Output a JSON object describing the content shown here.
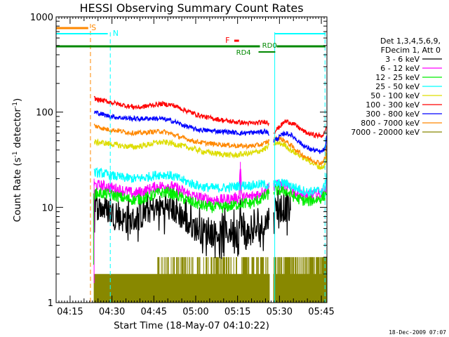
{
  "chart_data": {
    "type": "line",
    "title": "HESSI Observing Summary Count Rates",
    "xlabel": "Start Time (18-May-07 04:10:22)",
    "ylabel_main": "Count Rate (s",
    "ylabel_sup1": "-1",
    "ylabel_mid": " detector",
    "ylabel_sup2": "-1",
    "ylabel_end": ")",
    "yscale": "log",
    "ylim": [
      1,
      1000
    ],
    "xlim_minutes": [
      0,
      97
    ],
    "x_ticks": [
      {
        "m": 5,
        "label": "04:15"
      },
      {
        "m": 20,
        "label": "04:30"
      },
      {
        "m": 35,
        "label": "04:45"
      },
      {
        "m": 50,
        "label": "05:00"
      },
      {
        "m": 65,
        "label": "05:15"
      },
      {
        "m": 80,
        "label": "05:30"
      },
      {
        "m": 95,
        "label": "05:45"
      }
    ],
    "y_ticks": [
      {
        "v": 1,
        "label": "1"
      },
      {
        "v": 10,
        "label": "10"
      },
      {
        "v": 100,
        "label": "100"
      },
      {
        "v": 1000,
        "label": "1000"
      }
    ],
    "legend_header": [
      "Det 1,3,4,5,6,9,",
      "FDecim 1, Att 0"
    ],
    "legend_position": "right",
    "data_start_minute": 13.6,
    "data_end_minute": 97,
    "data_gap_minutes": [
      76.4,
      77.9
    ],
    "series": [
      {
        "name": "3 - 6 keV",
        "color": "#000000",
        "noise": 0.14,
        "points": [
          [
            13.6,
            10
          ],
          [
            15,
            10
          ],
          [
            18,
            9.5
          ],
          [
            22,
            8
          ],
          [
            26,
            7
          ],
          [
            30,
            8
          ],
          [
            34,
            9.5
          ],
          [
            38,
            10
          ],
          [
            42,
            9.5
          ],
          [
            46,
            7.5
          ],
          [
            50,
            6
          ],
          [
            55,
            5.5
          ],
          [
            60,
            5.2
          ],
          [
            64,
            5.8
          ],
          [
            65.5,
            5.8
          ],
          [
            66,
            8
          ],
          [
            67,
            5.2
          ],
          [
            70,
            5.5
          ],
          [
            73,
            6
          ],
          [
            75,
            7
          ],
          [
            76.4,
            8
          ],
          [
            78,
            10
          ],
          [
            82,
            9.5
          ],
          [
            84,
            9.5
          ]
        ]
      },
      {
        "name": "6 - 12 keV",
        "color": "#ff00ff",
        "noise": 0.06,
        "points": [
          [
            13.6,
            17
          ],
          [
            16,
            17
          ],
          [
            20,
            16
          ],
          [
            24,
            15
          ],
          [
            28,
            14
          ],
          [
            32,
            15
          ],
          [
            36,
            16.5
          ],
          [
            40,
            17
          ],
          [
            44,
            15.5
          ],
          [
            48,
            13.5
          ],
          [
            52,
            12.5
          ],
          [
            56,
            12
          ],
          [
            60,
            12
          ],
          [
            64,
            12.5
          ],
          [
            65.5,
            12.5
          ],
          [
            66,
            30
          ],
          [
            66.5,
            12.5
          ],
          [
            70,
            13
          ],
          [
            74,
            14.5
          ],
          [
            76.4,
            16.5
          ],
          [
            78,
            17
          ],
          [
            82,
            17
          ],
          [
            86,
            14
          ],
          [
            90,
            13
          ],
          [
            95,
            14
          ],
          [
            96.5,
            15
          ],
          [
            97,
            20
          ]
        ]
      },
      {
        "name": "12 - 25 keV",
        "color": "#00ee00",
        "noise": 0.06,
        "points": [
          [
            13.6,
            14
          ],
          [
            16,
            14
          ],
          [
            20,
            13.5
          ],
          [
            24,
            12.5
          ],
          [
            28,
            12
          ],
          [
            32,
            12.5
          ],
          [
            36,
            14
          ],
          [
            40,
            14.5
          ],
          [
            44,
            13
          ],
          [
            48,
            11.5
          ],
          [
            52,
            10.5
          ],
          [
            56,
            10
          ],
          [
            60,
            10
          ],
          [
            64,
            10.5
          ],
          [
            66,
            11
          ],
          [
            70,
            11
          ],
          [
            74,
            12.5
          ],
          [
            76.4,
            14
          ],
          [
            78,
            15
          ],
          [
            82,
            15
          ],
          [
            86,
            12.5
          ],
          [
            90,
            11.5
          ],
          [
            95,
            12.5
          ],
          [
            96.5,
            13.5
          ],
          [
            97,
            16
          ]
        ]
      },
      {
        "name": "25 - 50 keV",
        "color": "#00ffff",
        "noise": 0.05,
        "points": [
          [
            13.6,
            23
          ],
          [
            16,
            23
          ],
          [
            20,
            21.5
          ],
          [
            24,
            20.5
          ],
          [
            28,
            20
          ],
          [
            32,
            20.5
          ],
          [
            36,
            22
          ],
          [
            40,
            22
          ],
          [
            44,
            20
          ],
          [
            48,
            18
          ],
          [
            52,
            16.5
          ],
          [
            56,
            16
          ],
          [
            60,
            16
          ],
          [
            64,
            16.5
          ],
          [
            66,
            17
          ],
          [
            70,
            17
          ],
          [
            74,
            17.5
          ],
          [
            76.4,
            17
          ],
          [
            78,
            17.5
          ],
          [
            82,
            18
          ],
          [
            86,
            16
          ],
          [
            90,
            14.5
          ],
          [
            95,
            15
          ],
          [
            96.5,
            17
          ],
          [
            97,
            25
          ]
        ]
      },
      {
        "name": "50 - 100 keV",
        "color": "#dddd00",
        "noise": 0.03,
        "points": [
          [
            13.6,
            48
          ],
          [
            16,
            48
          ],
          [
            20,
            46
          ],
          [
            24,
            44
          ],
          [
            28,
            43
          ],
          [
            32,
            45
          ],
          [
            36,
            48
          ],
          [
            40,
            48
          ],
          [
            44,
            45
          ],
          [
            48,
            42
          ],
          [
            52,
            39
          ],
          [
            56,
            37
          ],
          [
            60,
            36
          ],
          [
            64,
            35
          ],
          [
            66,
            36
          ],
          [
            70,
            37
          ],
          [
            74,
            40
          ],
          [
            76.4,
            44
          ],
          [
            78,
            47
          ],
          [
            80,
            47
          ],
          [
            82,
            45
          ],
          [
            84,
            40
          ],
          [
            88,
            34
          ],
          [
            92,
            29
          ],
          [
            95,
            26
          ],
          [
            96.5,
            28
          ],
          [
            97,
            40
          ]
        ]
      },
      {
        "name": "100 - 300 keV",
        "color": "#ff0000",
        "noise": 0.025,
        "points": [
          [
            13.6,
            140
          ],
          [
            15,
            135
          ],
          [
            18,
            130
          ],
          [
            22,
            122
          ],
          [
            26,
            115
          ],
          [
            30,
            112
          ],
          [
            34,
            118
          ],
          [
            38,
            122
          ],
          [
            42,
            118
          ],
          [
            46,
            105
          ],
          [
            50,
            95
          ],
          [
            54,
            88
          ],
          [
            58,
            84
          ],
          [
            62,
            80
          ],
          [
            66,
            78
          ],
          [
            70,
            76
          ],
          [
            74,
            78
          ],
          [
            75,
            80
          ],
          [
            76.4,
            75
          ],
          [
            77,
            60
          ],
          [
            78,
            62
          ],
          [
            80,
            70
          ],
          [
            82,
            80
          ],
          [
            84,
            78
          ],
          [
            86,
            72
          ],
          [
            88,
            65
          ],
          [
            90,
            60
          ],
          [
            92,
            58
          ],
          [
            95,
            56
          ],
          [
            96.5,
            62
          ],
          [
            97,
            80
          ]
        ]
      },
      {
        "name": "300 - 800 keV",
        "color": "#0000ff",
        "noise": 0.025,
        "points": [
          [
            13.6,
            100
          ],
          [
            15,
            98
          ],
          [
            18,
            92
          ],
          [
            22,
            88
          ],
          [
            26,
            86
          ],
          [
            30,
            85
          ],
          [
            34,
            86
          ],
          [
            38,
            85
          ],
          [
            42,
            80
          ],
          [
            46,
            72
          ],
          [
            50,
            66
          ],
          [
            54,
            64
          ],
          [
            58,
            63
          ],
          [
            62,
            62
          ],
          [
            66,
            60
          ],
          [
            70,
            61
          ],
          [
            74,
            62
          ],
          [
            75,
            64
          ],
          [
            76.4,
            58
          ],
          [
            77,
            48
          ],
          [
            78,
            50
          ],
          [
            80,
            55
          ],
          [
            82,
            60
          ],
          [
            84,
            58
          ],
          [
            86,
            52
          ],
          [
            88,
            46
          ],
          [
            90,
            42
          ],
          [
            92,
            40
          ],
          [
            95,
            38
          ],
          [
            96.5,
            42
          ],
          [
            97,
            60
          ]
        ]
      },
      {
        "name": "800 - 7000 keV",
        "color": "#ff8800",
        "noise": 0.025,
        "points": [
          [
            13.6,
            72
          ],
          [
            15,
            70
          ],
          [
            18,
            66
          ],
          [
            22,
            64
          ],
          [
            26,
            61
          ],
          [
            30,
            60
          ],
          [
            34,
            62
          ],
          [
            38,
            63
          ],
          [
            42,
            58
          ],
          [
            46,
            53
          ],
          [
            50,
            49
          ],
          [
            54,
            47
          ],
          [
            58,
            46
          ],
          [
            62,
            45
          ],
          [
            66,
            44
          ],
          [
            70,
            44
          ],
          [
            74,
            46
          ],
          [
            76.4,
            50
          ],
          [
            78,
            52
          ],
          [
            80,
            53
          ],
          [
            82,
            50
          ],
          [
            84,
            45
          ],
          [
            86,
            40
          ],
          [
            88,
            36
          ],
          [
            90,
            33
          ],
          [
            92,
            31
          ],
          [
            95,
            29
          ],
          [
            96.5,
            33
          ],
          [
            97,
            50
          ]
        ]
      },
      {
        "name": "7000 - 20000 keV",
        "color": "#888800",
        "noise": 0,
        "points": []
      }
    ],
    "segment_labels": [
      {
        "id": "saa",
        "label": "S",
        "color": "#ff8800"
      },
      {
        "id": "night",
        "label": "N",
        "color": "#00ffff"
      },
      {
        "id": "flare",
        "label": "F",
        "color": "#ff0000"
      },
      {
        "id": "rd0",
        "label": "RD0",
        "color": "#008800"
      },
      {
        "id": "rd4",
        "label": "RD4",
        "color": "#008800"
      }
    ]
  },
  "footer_date": "18-Dec-2009 07:07"
}
